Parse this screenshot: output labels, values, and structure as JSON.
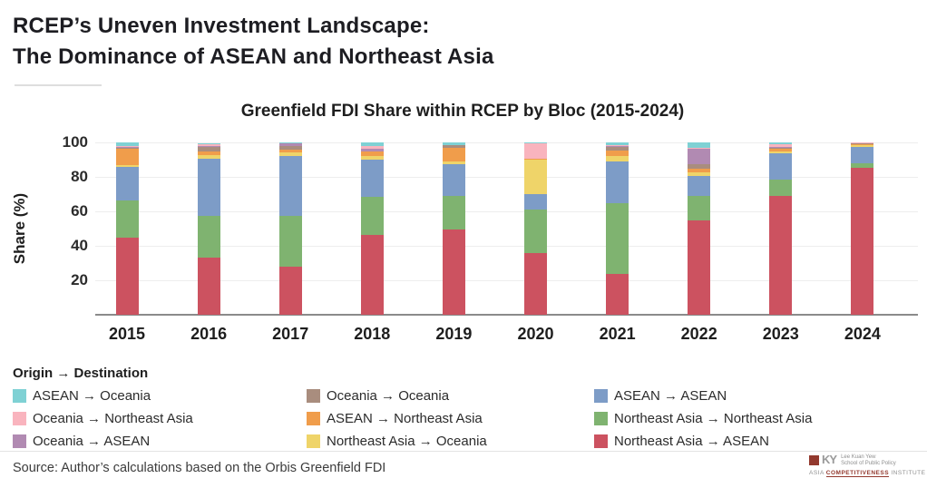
{
  "header": {
    "title_line1": "RCEP’s Uneven Investment Landscape:",
    "title_line2": "The Dominance of ASEAN and Northeast Asia"
  },
  "chart": {
    "title": "Greenfield FDI Share within RCEP by Bloc (2015-2024)",
    "y_axis_label": "Share (%)"
  },
  "chart_data": {
    "type": "bar",
    "stacked": true,
    "title": "Greenfield FDI Share within RCEP by Bloc (2015-2024)",
    "xlabel": "",
    "ylabel": "Share (%)",
    "ylim": [
      0,
      100
    ],
    "yticks": [
      20,
      40,
      60,
      80,
      100
    ],
    "grid": true,
    "legend_position": "bottom",
    "categories": [
      "2015",
      "2016",
      "2017",
      "2018",
      "2019",
      "2020",
      "2021",
      "2022",
      "2023",
      "2024"
    ],
    "series": [
      {
        "name": "Northeast Asia → ASEAN",
        "color": "#cc5260",
        "values": [
          44.5,
          33.0,
          28.0,
          46.5,
          49.5,
          36.0,
          23.5,
          55.0,
          69.0,
          85.5
        ]
      },
      {
        "name": "Northeast Asia → Northeast Asia",
        "color": "#7fb370",
        "values": [
          22.0,
          24.5,
          29.5,
          22.0,
          19.5,
          25.0,
          41.0,
          14.0,
          9.5,
          2.5
        ]
      },
      {
        "name": "ASEAN → ASEAN",
        "color": "#7d9cc7",
        "values": [
          19.5,
          33.0,
          34.5,
          21.5,
          18.5,
          9.0,
          24.5,
          11.5,
          15.0,
          9.5
        ]
      },
      {
        "name": "Northeast Asia → Oceania",
        "color": "#efd469",
        "values": [
          1.0,
          2.0,
          2.0,
          2.0,
          1.5,
          19.8,
          3.0,
          2.0,
          1.5,
          1.0
        ]
      },
      {
        "name": "ASEAN → Northeast Asia",
        "color": "#f09d4b",
        "values": [
          9.5,
          2.5,
          2.0,
          2.5,
          8.0,
          0.7,
          3.5,
          2.0,
          1.5,
          0.7
        ]
      },
      {
        "name": "Oceania → Oceania",
        "color": "#a98d7e",
        "values": [
          0.2,
          2.5,
          2.0,
          0.5,
          1.3,
          0.1,
          2.0,
          3.0,
          0.5,
          0.4
        ]
      },
      {
        "name": "Oceania → ASEAN",
        "color": "#b18ab2",
        "values": [
          0.6,
          0.2,
          1.5,
          1.5,
          0.2,
          0.1,
          0.5,
          9.0,
          0.3,
          0.1
        ]
      },
      {
        "name": "Oceania → Northeast Asia",
        "color": "#f9b4be",
        "values": [
          0.7,
          1.3,
          0.2,
          1.5,
          0.2,
          8.8,
          0.5,
          0.5,
          1.7,
          0.2
        ]
      },
      {
        "name": "ASEAN → Oceania",
        "color": "#7fd1d4",
        "values": [
          2.0,
          0.5,
          0.3,
          2.0,
          1.3,
          0.5,
          1.5,
          3.0,
          1.0,
          0.1
        ]
      }
    ]
  },
  "legend": {
    "title": "Origin → Destination",
    "columns": [
      [
        {
          "label": "ASEAN → Oceania",
          "color": "#7fd1d4"
        },
        {
          "label": "Oceania → Northeast Asia",
          "color": "#f9b4be"
        },
        {
          "label": "Oceania → ASEAN",
          "color": "#b18ab2"
        }
      ],
      [
        {
          "label": "Oceania → Oceania",
          "color": "#a98d7e"
        },
        {
          "label": "ASEAN → Northeast Asia",
          "color": "#f09d4b"
        },
        {
          "label": "Northeast Asia → Oceania",
          "color": "#efd469"
        }
      ],
      [
        {
          "label": "ASEAN → ASEAN",
          "color": "#7d9cc7"
        },
        {
          "label": "Northeast Asia → Northeast Asia",
          "color": "#7fb370"
        },
        {
          "label": "Northeast Asia → ASEAN",
          "color": "#cc5260"
        }
      ]
    ]
  },
  "footer": {
    "source": "Source: Author’s calculations based on the Orbis Greenfield FDI",
    "logo": {
      "mark": "KY",
      "school_line1": "Lee Kuan Yew",
      "school_line2": "School of Public Policy",
      "institute_word1": "ASIA",
      "institute_word2": "COMPETITIVENESS",
      "institute_word3": "INSTITUTE",
      "accent_color": "#93392e"
    }
  }
}
